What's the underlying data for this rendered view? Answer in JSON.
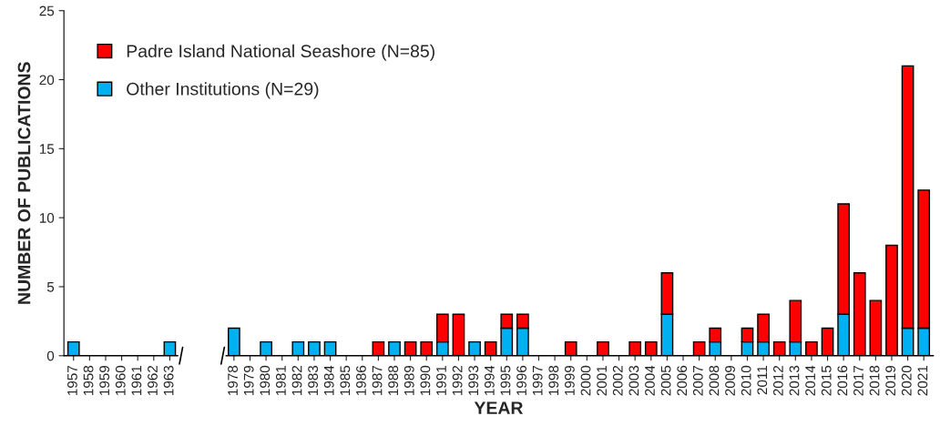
{
  "chart_data": {
    "type": "bar",
    "stacked": true,
    "xlabel": "YEAR",
    "ylabel": "NUMBER OF PUBLICATIONS",
    "categories": [
      "1957",
      "1958",
      "1959",
      "1960",
      "1961",
      "1962",
      "1963",
      null,
      null,
      null,
      "1978",
      "1979",
      "1980",
      "1981",
      "1982",
      "1983",
      "1984",
      "1985",
      "1986",
      "1987",
      "1988",
      "1989",
      "1990",
      "1991",
      "1992",
      "1993",
      "1994",
      "1995",
      "1996",
      "1997",
      "1998",
      "1999",
      "2000",
      "2001",
      "2002",
      "2003",
      "2004",
      "2005",
      "2006",
      "2007",
      "2008",
      "2009",
      "2010",
      "2011",
      "2012",
      "2013",
      "2014",
      "2015",
      "2016",
      "2017",
      "2018",
      "2019",
      "2020",
      "2021"
    ],
    "series": [
      {
        "name": "Other Institutions (N=29)",
        "color": "#00b0f0",
        "values": [
          1,
          0,
          0,
          0,
          0,
          0,
          1,
          null,
          null,
          null,
          2,
          0,
          1,
          0,
          1,
          1,
          1,
          0,
          0,
          0,
          1,
          0,
          0,
          1,
          0,
          1,
          0,
          2,
          2,
          0,
          0,
          0,
          0,
          0,
          0,
          0,
          0,
          3,
          0,
          0,
          1,
          0,
          1,
          1,
          0,
          1,
          0,
          0,
          3,
          0,
          0,
          0,
          2,
          2
        ]
      },
      {
        "name": "Padre Island National Seashore (N=85)",
        "color": "#ff0000",
        "values": [
          0,
          0,
          0,
          0,
          0,
          0,
          0,
          null,
          null,
          null,
          0,
          0,
          0,
          0,
          0,
          0,
          0,
          0,
          0,
          1,
          0,
          1,
          1,
          2,
          3,
          0,
          1,
          1,
          1,
          0,
          0,
          1,
          0,
          1,
          0,
          1,
          1,
          3,
          0,
          1,
          1,
          0,
          1,
          2,
          1,
          3,
          1,
          2,
          8,
          6,
          4,
          8,
          19,
          10
        ]
      }
    ],
    "ylim": [
      0,
      25
    ],
    "yticks": [
      0,
      5,
      10,
      15,
      20,
      25
    ],
    "legend": "top left"
  }
}
